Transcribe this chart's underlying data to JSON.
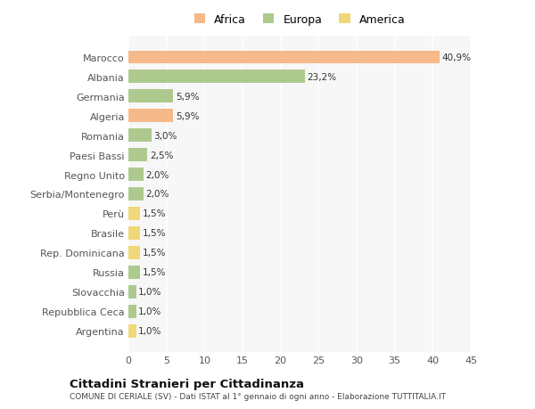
{
  "countries": [
    "Marocco",
    "Albania",
    "Germania",
    "Algeria",
    "Romania",
    "Paesi Bassi",
    "Regno Unito",
    "Serbia/Montenegro",
    "Perù",
    "Brasile",
    "Rep. Dominicana",
    "Russia",
    "Slovacchia",
    "Repubblica Ceca",
    "Argentina"
  ],
  "values": [
    40.9,
    23.2,
    5.9,
    5.9,
    3.0,
    2.5,
    2.0,
    2.0,
    1.5,
    1.5,
    1.5,
    1.5,
    1.0,
    1.0,
    1.0
  ],
  "labels": [
    "40,9%",
    "23,2%",
    "5,9%",
    "5,9%",
    "3,0%",
    "2,5%",
    "2,0%",
    "2,0%",
    "1,5%",
    "1,5%",
    "1,5%",
    "1,5%",
    "1,0%",
    "1,0%",
    "1,0%"
  ],
  "colors": [
    "#f5b98a",
    "#aec98e",
    "#aec98e",
    "#f5b98a",
    "#aec98e",
    "#aec98e",
    "#aec98e",
    "#aec98e",
    "#f0d878",
    "#f0d878",
    "#f0d878",
    "#aec98e",
    "#aec98e",
    "#aec98e",
    "#f0d878"
  ],
  "legend_labels": [
    "Africa",
    "Europa",
    "America"
  ],
  "legend_colors": [
    "#f5b98a",
    "#aec98e",
    "#f0d878"
  ],
  "title": "Cittadini Stranieri per Cittadinanza",
  "subtitle": "COMUNE DI CERIALE (SV) - Dati ISTAT al 1° gennaio di ogni anno - Elaborazione TUTTITALIA.IT",
  "xlim": [
    0,
    45
  ],
  "xticks": [
    0,
    5,
    10,
    15,
    20,
    25,
    30,
    35,
    40,
    45
  ],
  "bg_color": "#ffffff",
  "plot_bg_color": "#f7f7f7",
  "bar_height": 0.65
}
